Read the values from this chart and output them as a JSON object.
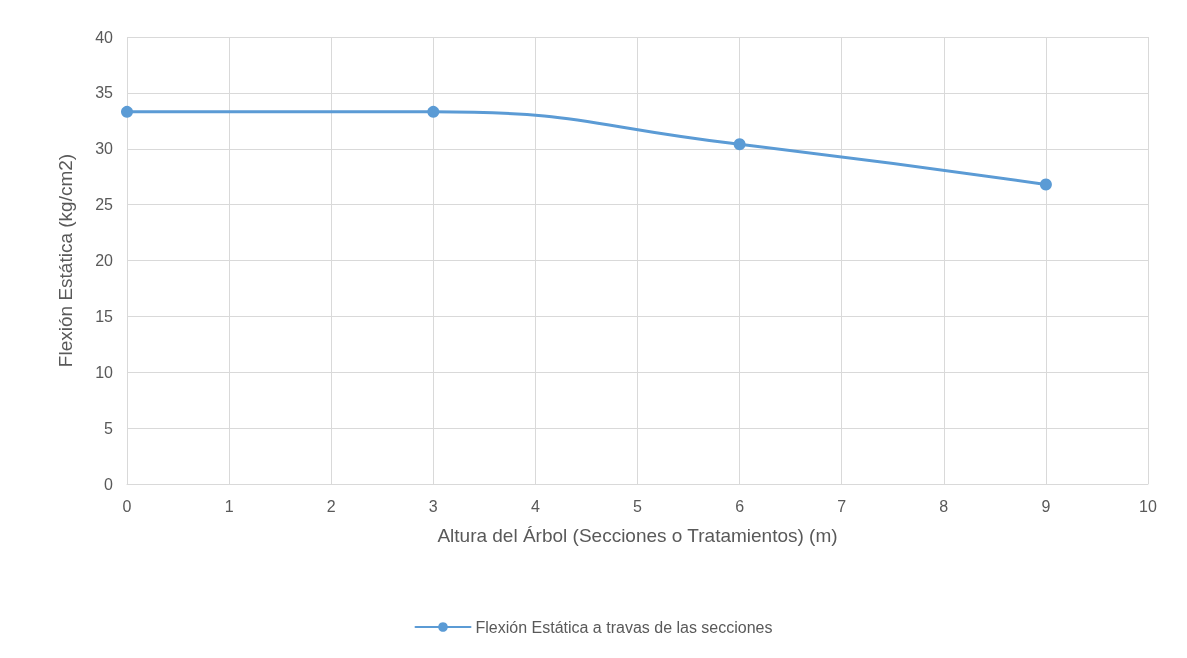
{
  "chart_data": {
    "type": "line",
    "xlabel": "Altura del Árbol (Secciones o Tratamientos) (m)",
    "ylabel": "Flexión Estática (kg/cm2)",
    "x": [
      0,
      3,
      6,
      9
    ],
    "series": [
      {
        "name": "Flexión Estática a travas de las secciones",
        "color": "#5b9bd5",
        "values": [
          33.3,
          33.3,
          30.4,
          26.8
        ]
      }
    ],
    "xlim": [
      0,
      10
    ],
    "xticks": [
      0,
      1,
      2,
      3,
      4,
      5,
      6,
      7,
      8,
      9,
      10
    ],
    "ylim": [
      0,
      40
    ],
    "yticks": [
      0,
      5,
      10,
      15,
      20,
      25,
      30,
      35,
      40
    ],
    "grid": true,
    "legend": "bottom",
    "marker": "circle",
    "line_style": "solid"
  }
}
